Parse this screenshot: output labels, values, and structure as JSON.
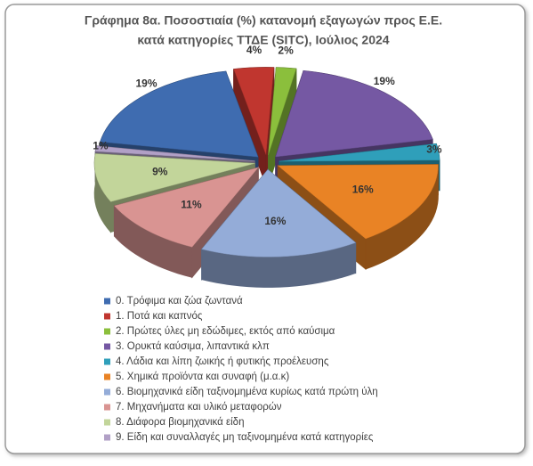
{
  "chart_data": {
    "type": "pie",
    "title": [
      "Γράφημα 8α. Ποσοστιαία (%) κατανομή εξαγωγών προς Ε.Ε.",
      "κατά κατηγορίες ΤΤΔΕ (SITC),  Ιούλιος 2024"
    ],
    "categories": [
      "0. Τρόφιμα και ζώα ζωντανά",
      "1. Ποτά και καπνός",
      "2. Πρώτες ύλες μη εδώδιμες, εκτός από καύσιμα",
      "3. Ορυκτά καύσιμα, λιπαντικά κλπ",
      "4. Λάδια και λίπη ζωικής ή φυτικής προέλευσης",
      "5. Χημικά προϊόντα και συναφή (μ.α.κ)",
      "6. Βιομηχανικά είδη ταξινομημένα κυρίως κατά πρώτη ύλη",
      "7. Μηχανήματα και υλικό μεταφορών",
      "8. Διάφορα βιομηχανικά είδη",
      "9. Είδη και συναλλαγές μη ταξινομημένα κατά  κατηγορίες"
    ],
    "values": [
      19,
      4,
      2,
      19,
      3,
      16,
      16,
      11,
      9,
      1
    ],
    "value_labels": [
      "19%",
      "4%",
      "2%",
      "19%",
      "3%",
      "16%",
      "16%",
      "11%",
      "9%",
      "1%"
    ],
    "colors": [
      "#3f6cb0",
      "#c0362f",
      "#8bbf3c",
      "#7558a3",
      "#2f9fba",
      "#e98325",
      "#94acd8",
      "#d99492",
      "#c2d59a",
      "#b1a0c6"
    ]
  }
}
